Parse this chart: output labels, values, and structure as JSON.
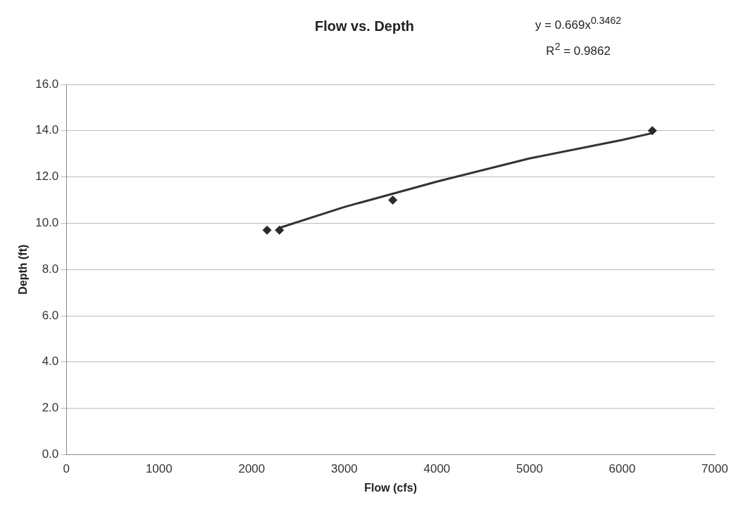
{
  "chart_data": {
    "type": "scatter",
    "title": "Flow vs. Depth",
    "xlabel": "Flow (cfs)",
    "ylabel": "Depth (ft)",
    "annotations": [
      "y = 0.669x$^{0.3462}$",
      "R$^{2}$ = 0.9862"
    ],
    "series": [
      {
        "color": "#2b2b2b",
        "marker": "diamond",
        "x": [
          2166,
          2300,
          3524,
          6326
        ],
        "values": [
          9.7,
          9.7,
          11.0,
          14.0
        ]
      },
      {
        "type": "line",
        "color": "#333333",
        "marker": "none",
        "x": [
          2300,
          3000,
          4000,
          5000,
          6000,
          6330
        ],
        "values": [
          9.8,
          10.7,
          11.8,
          12.8,
          13.6,
          13.9
        ]
      }
    ],
    "xlim": [
      0,
      7000
    ],
    "xticks": [
      0,
      1000,
      2000,
      3000,
      4000,
      5000,
      6000,
      7000
    ],
    "ylim": [
      0,
      16
    ],
    "yticks": [
      {
        "value": 0,
        "label": "0.0"
      },
      {
        "value": 2,
        "label": "2.0"
      },
      {
        "value": 4,
        "label": "4.0"
      },
      {
        "value": 6,
        "label": "6.0"
      },
      {
        "value": 8,
        "label": "8.0"
      },
      {
        "value": 10,
        "label": "10.0"
      },
      {
        "value": 12,
        "label": "12.0"
      },
      {
        "value": 14,
        "label": "14.0"
      },
      {
        "value": 16,
        "label": "16.0"
      }
    ],
    "grid": "y",
    "legend": false
  }
}
